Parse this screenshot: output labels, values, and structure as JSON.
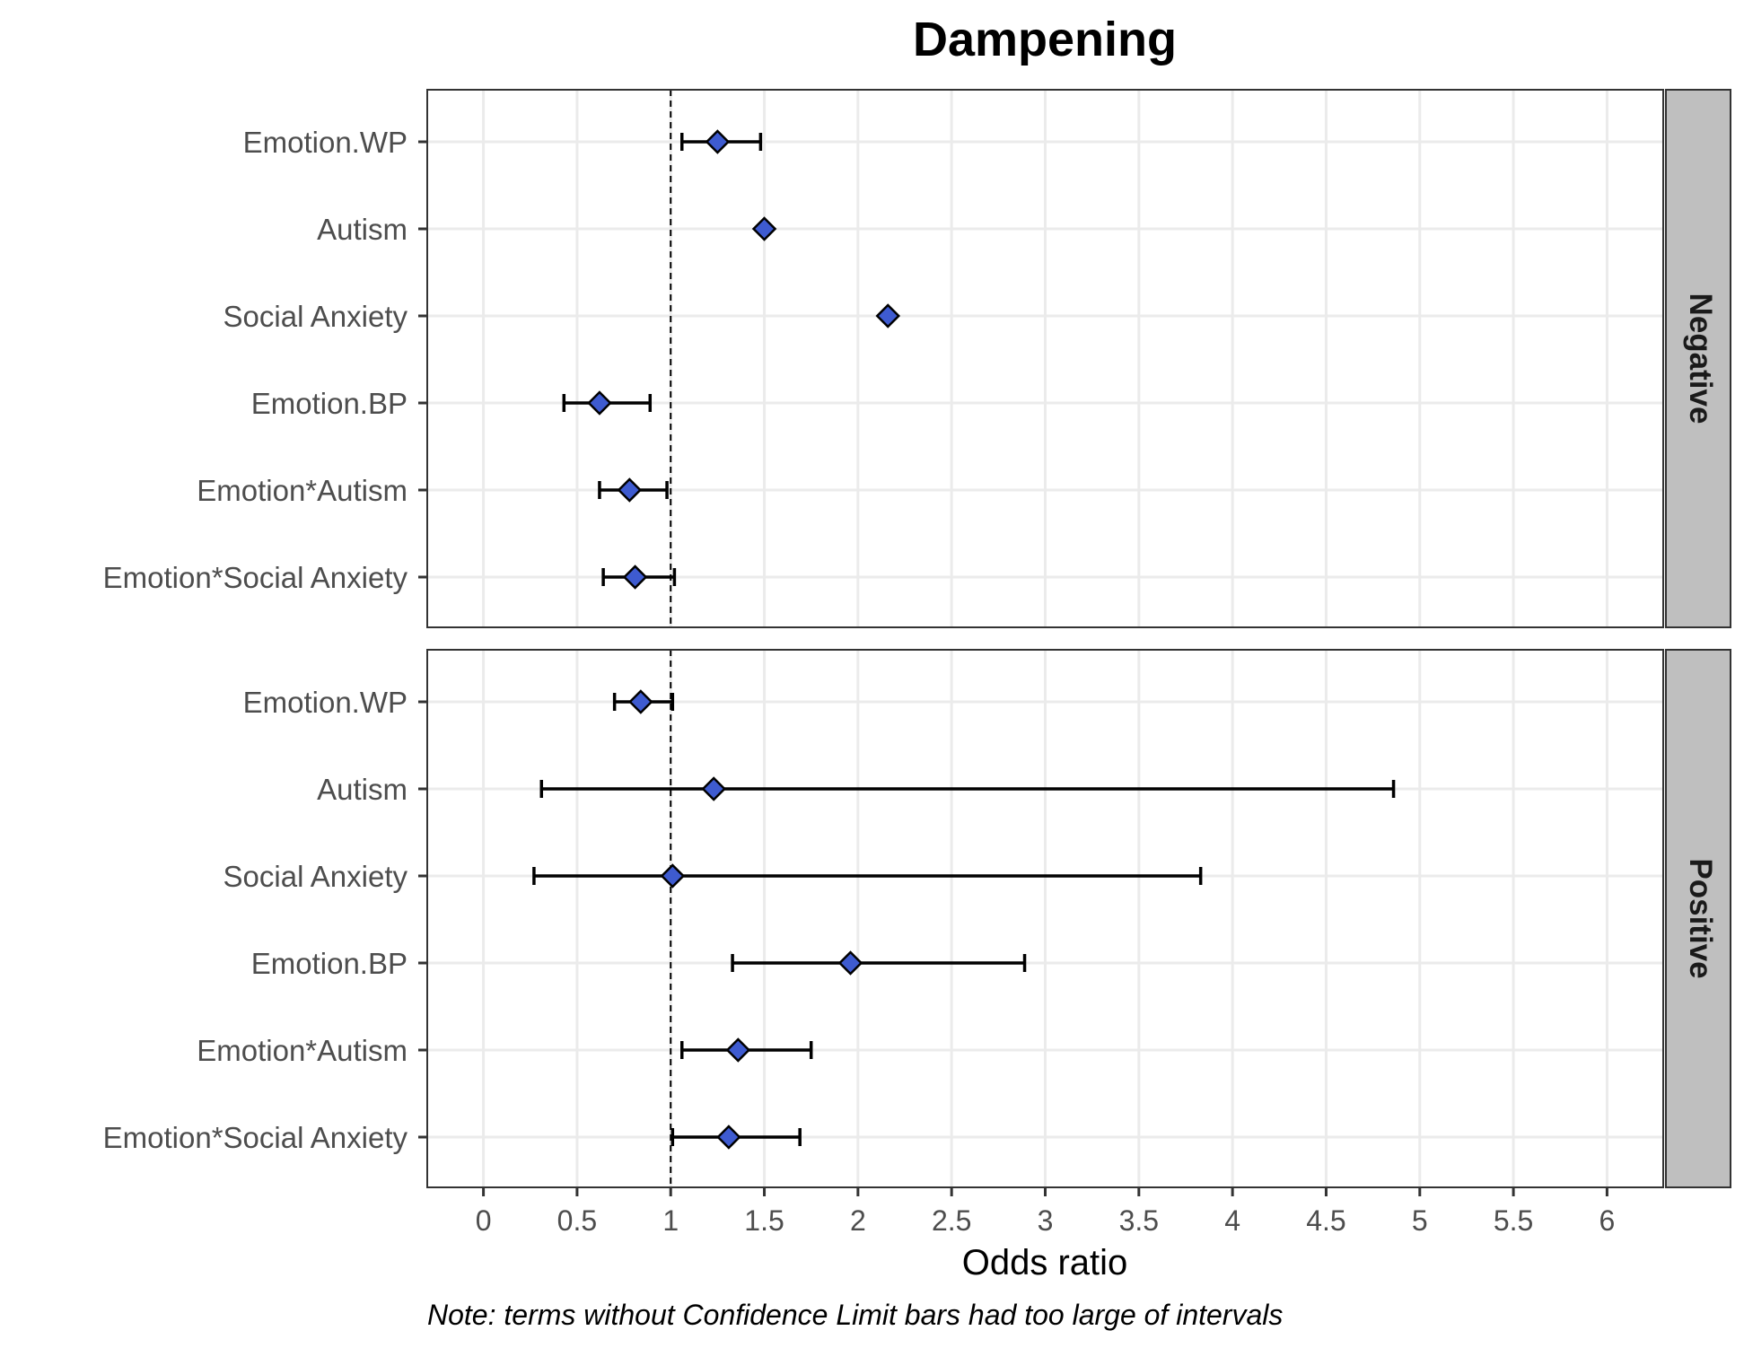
{
  "chart_data": {
    "type": "forest",
    "title": "Dampening",
    "xlabel": "Odds ratio",
    "note": "Note: terms without Confidence Limit bars had too large of intervals",
    "xlim": [
      -0.3,
      6.3
    ],
    "xticks": [
      0,
      0.5,
      1,
      1.5,
      2,
      2.5,
      3,
      3.5,
      4,
      4.5,
      5,
      5.5,
      6
    ],
    "xtick_labels": [
      "0",
      "0.5",
      "1",
      "1.5",
      "2",
      "2.5",
      "3",
      "3.5",
      "4",
      "4.5",
      "5",
      "5.5",
      "6"
    ],
    "reference_line": 1,
    "grid": true,
    "marker": "diamond",
    "marker_color": "#3e5bd0",
    "categories": [
      "Emotion.WP",
      "Autism",
      "Social Anxiety",
      "Emotion.BP",
      "Emotion*Autism",
      "Emotion*Social Anxiety"
    ],
    "panels": [
      {
        "label": "Negative",
        "estimates": [
          1.25,
          1.5,
          2.16,
          0.62,
          0.78,
          0.81
        ],
        "lower": [
          1.06,
          null,
          null,
          0.43,
          0.62,
          0.64
        ],
        "upper": [
          1.48,
          null,
          null,
          0.89,
          0.98,
          1.02
        ]
      },
      {
        "label": "Positive",
        "estimates": [
          0.84,
          1.23,
          1.01,
          1.96,
          1.36,
          1.31
        ],
        "lower": [
          0.7,
          0.31,
          0.27,
          1.33,
          1.06,
          1.01
        ],
        "upper": [
          1.01,
          4.86,
          3.83,
          2.89,
          1.75,
          1.69
        ]
      }
    ]
  }
}
